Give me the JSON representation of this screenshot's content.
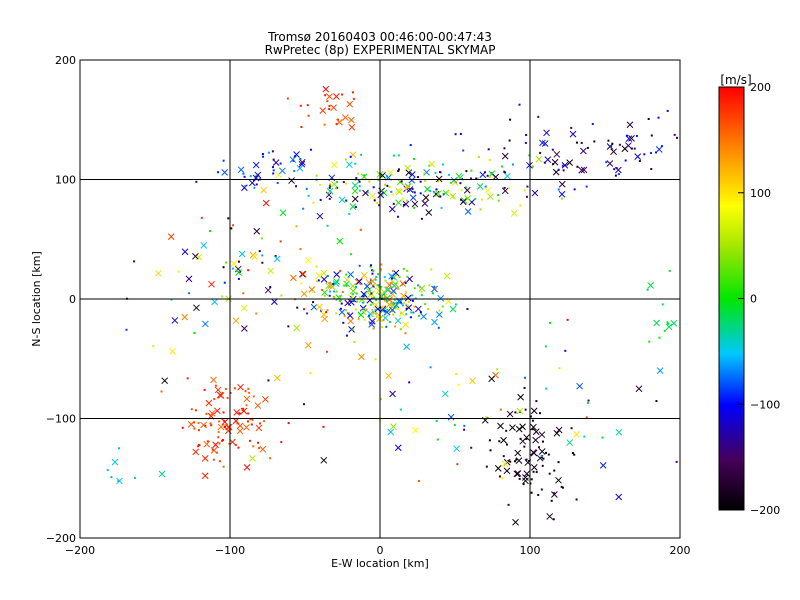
{
  "chart_data": {
    "type": "scatter",
    "title": "Tromsø 20160403 00:46:00-00:47:43",
    "subtitle": "RwPretec (8p) EXPERIMENTAL SKYMAP",
    "xlabel": "E-W location [km]",
    "ylabel": "N-S location [km]",
    "xlim": [
      -200,
      200
    ],
    "ylim": [
      -200,
      200
    ],
    "x_ticks": [
      -200,
      -100,
      0,
      100,
      200
    ],
    "y_ticks": [
      -200,
      -100,
      0,
      100,
      200
    ],
    "grid": true,
    "colorbar": {
      "label": "[m/s]",
      "min": -200,
      "max": 200,
      "ticks": [
        -200,
        -100,
        0,
        100,
        200
      ],
      "colormap": "rainbow (black-purple-blue-cyan-green-yellow-orange-red)"
    },
    "marker_types": [
      "x",
      "dot"
    ],
    "clusters": [
      {
        "region": "center",
        "x": 0,
        "y": 0,
        "spread_x": 22,
        "spread_y": 14,
        "velocity_range": [
          -130,
          160
        ],
        "count": 260
      },
      {
        "region": "north-arm",
        "x": 30,
        "y": 95,
        "spread_x": 45,
        "spread_y": 12,
        "velocity_range": [
          -200,
          120
        ],
        "count": 200
      },
      {
        "region": "north-east-arc",
        "x": 140,
        "y": 125,
        "spread_x": 45,
        "spread_y": 15,
        "velocity_range": [
          -200,
          -80
        ],
        "count": 90
      },
      {
        "region": "north-west",
        "x": -70,
        "y": 112,
        "spread_x": 20,
        "spread_y": 10,
        "velocity_range": [
          -140,
          -60
        ],
        "count": 40
      },
      {
        "region": "north-west-red",
        "x": -35,
        "y": 160,
        "spread_x": 12,
        "spread_y": 10,
        "velocity_range": [
          150,
          200
        ],
        "count": 25
      },
      {
        "region": "south-west-red",
        "x": -100,
        "y": -100,
        "spread_x": 15,
        "spread_y": 18,
        "velocity_range": [
          150,
          200
        ],
        "count": 100
      },
      {
        "region": "south-east-black",
        "x": 100,
        "y": -130,
        "spread_x": 12,
        "spread_y": 22,
        "velocity_range": [
          -200,
          -170
        ],
        "count": 90
      },
      {
        "region": "west-mid",
        "x": -80,
        "y": 20,
        "spread_x": 40,
        "spread_y": 25,
        "velocity_range": [
          -200,
          200
        ],
        "count": 90
      },
      {
        "region": "far-east",
        "x": 190,
        "y": -10,
        "spread_x": 8,
        "spread_y": 15,
        "velocity_range": [
          -30,
          10
        ],
        "count": 12
      },
      {
        "region": "far-south-west",
        "x": -170,
        "y": -145,
        "spread_x": 12,
        "spread_y": 10,
        "velocity_range": [
          -60,
          -30
        ],
        "count": 8
      },
      {
        "region": "south-scatter",
        "x": 40,
        "y": -80,
        "spread_x": 70,
        "spread_y": 40,
        "velocity_range": [
          -200,
          200
        ],
        "count": 80
      }
    ]
  }
}
